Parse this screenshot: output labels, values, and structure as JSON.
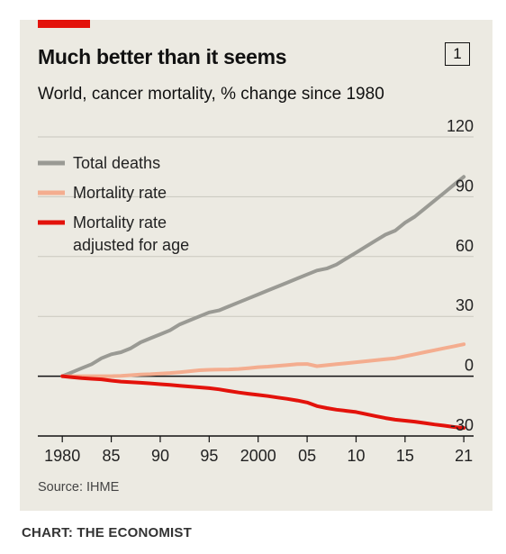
{
  "header": {
    "title": "Much better than it seems",
    "subtitle": "World, cancer mortality, % change since 1980",
    "chart_number": "1"
  },
  "footer": {
    "source": "Source: IHME",
    "credit": "CHART: THE ECONOMIST"
  },
  "colors": {
    "background": "#eceae2",
    "accent_red": "#e3120b",
    "total_deaths": "#9a9a94",
    "mortality_rate": "#f4ad8f",
    "mortality_rate_age_adjusted": "#e3120b",
    "grid": "#c9c7be",
    "zero_line": "#111111"
  },
  "chart_data": {
    "type": "line",
    "title": "Much better than it seems",
    "subtitle": "World, cancer mortality, % change since 1980",
    "xlabel": "",
    "ylabel": "",
    "x": [
      1980,
      1981,
      1982,
      1983,
      1984,
      1985,
      1986,
      1987,
      1988,
      1989,
      1990,
      1991,
      1992,
      1993,
      1994,
      1995,
      1996,
      1997,
      1998,
      1999,
      2000,
      2001,
      2002,
      2003,
      2004,
      2005,
      2006,
      2007,
      2008,
      2009,
      2010,
      2011,
      2012,
      2013,
      2014,
      2015,
      2016,
      2017,
      2018,
      2019,
      2020,
      2021
    ],
    "x_tick_values": [
      1980,
      1985,
      1990,
      1995,
      2000,
      2005,
      2010,
      2015,
      2021
    ],
    "x_tick_labels": [
      "1980",
      "85",
      "90",
      "95",
      "2000",
      "05",
      "10",
      "15",
      "21"
    ],
    "y_ticks": [
      120,
      90,
      60,
      30,
      0,
      -30
    ],
    "y_tick_labels": [
      "120",
      "90",
      "60",
      "30",
      "0",
      "-30"
    ],
    "ylim": [
      -30,
      120
    ],
    "xlim": [
      1977.5,
      2022
    ],
    "grid": true,
    "legend_position": "top-left",
    "series": [
      {
        "name": "Total deaths",
        "color": "#9a9a94",
        "values": [
          0,
          2,
          4,
          6,
          9,
          11,
          12,
          14,
          17,
          19,
          21,
          23,
          26,
          28,
          30,
          32,
          33,
          35,
          37,
          39,
          41,
          43,
          45,
          47,
          49,
          51,
          53,
          54,
          56,
          59,
          62,
          65,
          68,
          71,
          73,
          77,
          80,
          84,
          88,
          92,
          96,
          100
        ]
      },
      {
        "name": "Mortality rate",
        "color": "#f4ad8f",
        "values": [
          0,
          0,
          0,
          0,
          0,
          0,
          0.2,
          0.5,
          0.8,
          1,
          1.3,
          1.6,
          2,
          2.5,
          3,
          3.2,
          3.3,
          3.4,
          3.6,
          4,
          4.5,
          4.8,
          5.2,
          5.6,
          6,
          6.1,
          5,
          5.5,
          6,
          6.5,
          7,
          7.5,
          8,
          8.5,
          9,
          10,
          11,
          12,
          13,
          14,
          15,
          16
        ]
      },
      {
        "name": "Mortality rate adjusted for age",
        "color": "#e3120b",
        "values": [
          0,
          -0.5,
          -1,
          -1.3,
          -1.6,
          -2.2,
          -2.7,
          -3,
          -3.3,
          -3.6,
          -4,
          -4.4,
          -4.8,
          -5.2,
          -5.6,
          -6,
          -6.6,
          -7.4,
          -8.2,
          -8.8,
          -9.4,
          -10,
          -10.7,
          -11.4,
          -12.2,
          -13.2,
          -15,
          -16,
          -16.8,
          -17.4,
          -18,
          -19,
          -20,
          -21,
          -21.8,
          -22.3,
          -22.8,
          -23.5,
          -24.2,
          -24.8,
          -25.5,
          -26
        ]
      }
    ]
  },
  "legend": {
    "items": [
      {
        "lines": [
          "Total deaths"
        ],
        "color": "#9a9a94"
      },
      {
        "lines": [
          "Mortality rate"
        ],
        "color": "#f4ad8f"
      },
      {
        "lines": [
          "Mortality rate",
          "adjusted for age"
        ],
        "color": "#e3120b"
      }
    ]
  }
}
